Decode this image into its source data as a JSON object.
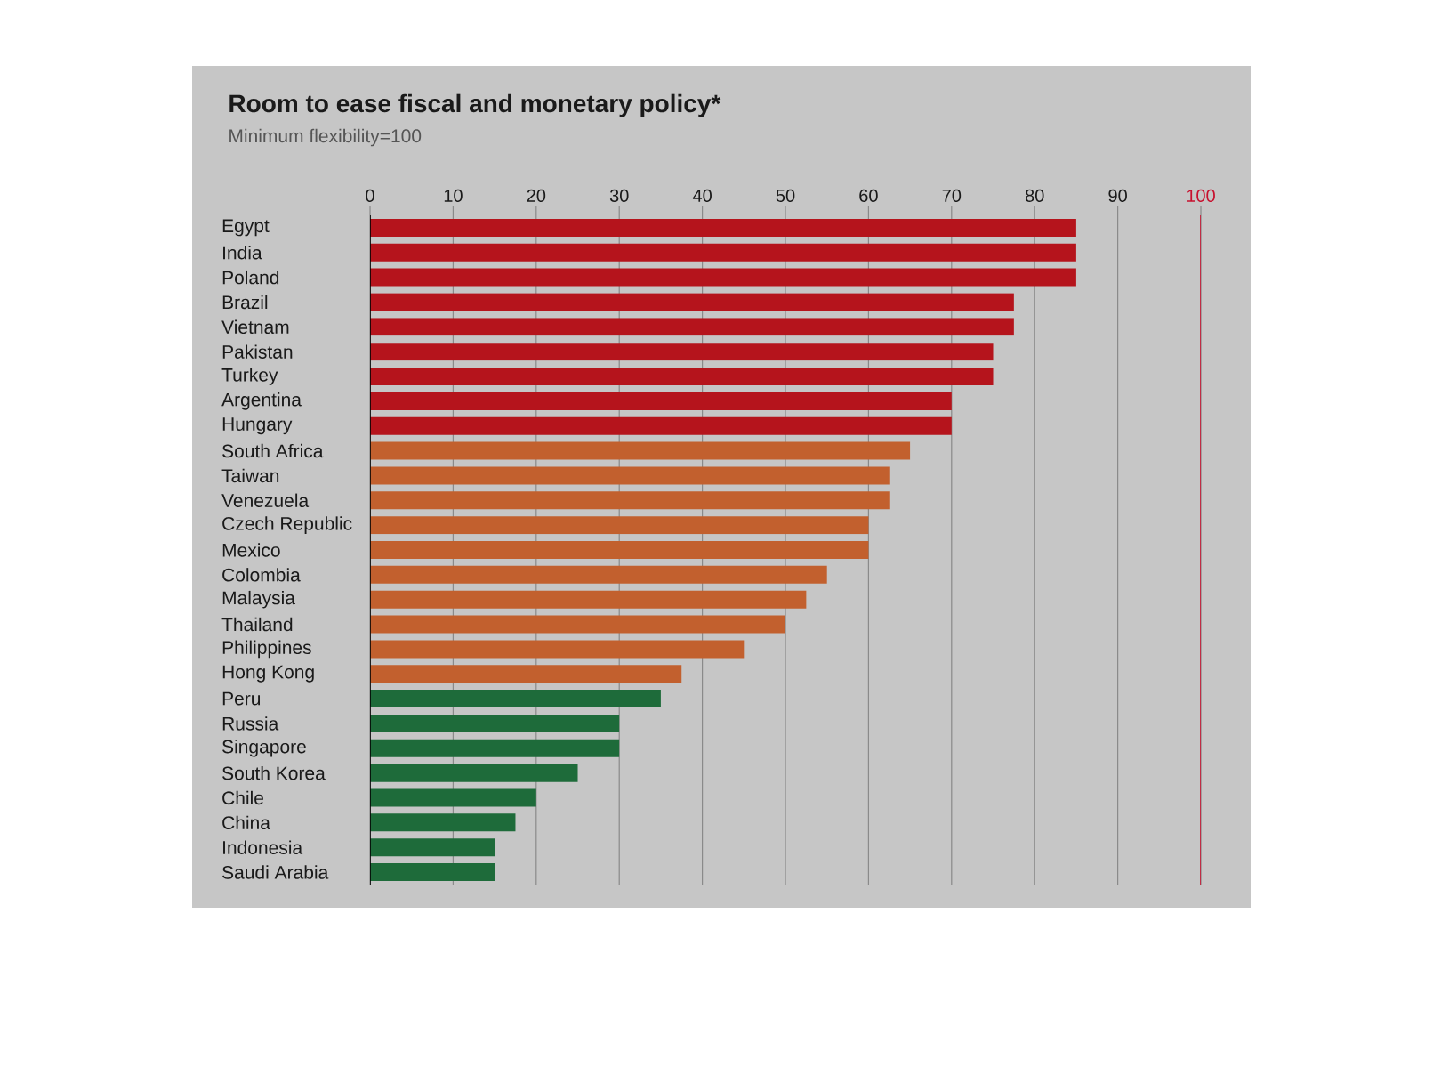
{
  "chart_data": {
    "type": "bar",
    "orientation": "horizontal",
    "title": "Room to ease fiscal and monetary policy*",
    "subtitle": "Minimum flexibility=100",
    "categories": [
      "Egypt",
      "India",
      "Poland",
      "Brazil",
      "Vietnam",
      "Pakistan",
      "Turkey",
      "Argentina",
      "Hungary",
      "South Africa",
      "Taiwan",
      "Venezuela",
      "Czech Republic",
      "Mexico",
      "Colombia",
      "Malaysia",
      "Thailand",
      "Philippines",
      "Hong Kong",
      "Peru",
      "Russia",
      "Singapore",
      "South Korea",
      "Chile",
      "China",
      "Indonesia",
      "Saudi Arabia"
    ],
    "values": [
      85,
      85,
      85,
      77.5,
      77.5,
      75,
      75,
      70,
      70,
      65,
      62.5,
      62.5,
      60,
      60,
      55,
      52.5,
      50,
      45,
      37.5,
      35,
      30,
      30,
      25,
      20,
      17.5,
      15,
      15
    ],
    "colors": [
      "#b5141c",
      "#b5141c",
      "#b5141c",
      "#b5141c",
      "#b5141c",
      "#b5141c",
      "#b5141c",
      "#b5141c",
      "#b5141c",
      "#c2602e",
      "#c2602e",
      "#c2602e",
      "#c2602e",
      "#c2602e",
      "#c2602e",
      "#c2602e",
      "#c2602e",
      "#c2602e",
      "#c2602e",
      "#1e6b3a",
      "#1e6b3a",
      "#1e6b3a",
      "#1e6b3a",
      "#1e6b3a",
      "#1e6b3a",
      "#1e6b3a",
      "#1e6b3a"
    ],
    "xlim": [
      0,
      100
    ],
    "xticks": [
      0,
      10,
      20,
      30,
      40,
      50,
      60,
      70,
      80,
      90,
      100
    ],
    "grid": "x",
    "ref_lines": [
      {
        "axis": "x",
        "value": 100,
        "color": "#c8102e"
      }
    ]
  }
}
